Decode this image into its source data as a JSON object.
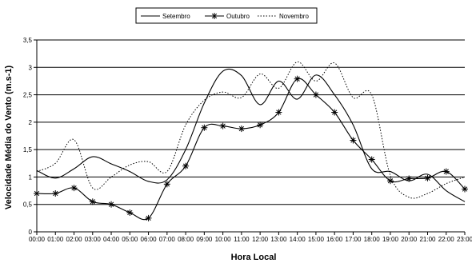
{
  "chart_data": {
    "type": "line",
    "x": [
      "00:00",
      "01:00",
      "02:00",
      "03:00",
      "04:00",
      "05:00",
      "06:00",
      "07:00",
      "08:00",
      "09:00",
      "10:00",
      "11:00",
      "12:00",
      "13:00",
      "14:00",
      "15:00",
      "16:00",
      "17:00",
      "18:00",
      "19:00",
      "20:00",
      "21:00",
      "22:00",
      "23:00"
    ],
    "series": [
      {
        "name": "Setembro",
        "style": "solid",
        "marker": "none",
        "values": [
          1.12,
          0.98,
          1.15,
          1.37,
          1.24,
          1.1,
          0.92,
          0.95,
          1.5,
          2.35,
          2.93,
          2.85,
          2.32,
          2.75,
          2.42,
          2.86,
          2.5,
          1.95,
          1.15,
          1.1,
          0.93,
          1.05,
          0.75,
          0.55
        ]
      },
      {
        "name": "Outubro",
        "style": "solid",
        "marker": "asterisk",
        "values": [
          0.7,
          0.7,
          0.8,
          0.55,
          0.5,
          0.35,
          0.25,
          0.87,
          1.2,
          1.9,
          1.93,
          1.88,
          1.95,
          2.18,
          2.79,
          2.5,
          2.18,
          1.67,
          1.32,
          0.93,
          0.97,
          0.98,
          1.1,
          0.78
        ]
      },
      {
        "name": "Novembro",
        "style": "dotted",
        "marker": "none",
        "values": [
          1.1,
          1.25,
          1.68,
          0.8,
          1.0,
          1.22,
          1.28,
          1.1,
          1.95,
          2.4,
          2.55,
          2.45,
          2.88,
          2.62,
          3.1,
          2.75,
          3.08,
          2.45,
          2.5,
          1.03,
          0.63,
          0.7,
          0.88,
          1.0
        ]
      }
    ],
    "xlabel": "Hora Local",
    "ylabel": "Velocidade Média do Vento (m.s-1)",
    "ylim": [
      0,
      3.5
    ],
    "yticks": [
      "0",
      "0,5",
      "1",
      "1,5",
      "2",
      "2,5",
      "3",
      "3,5"
    ],
    "grid": "horizontal",
    "legend_position": "top",
    "colors": {
      "line": "#000000",
      "grid": "#000000"
    }
  }
}
